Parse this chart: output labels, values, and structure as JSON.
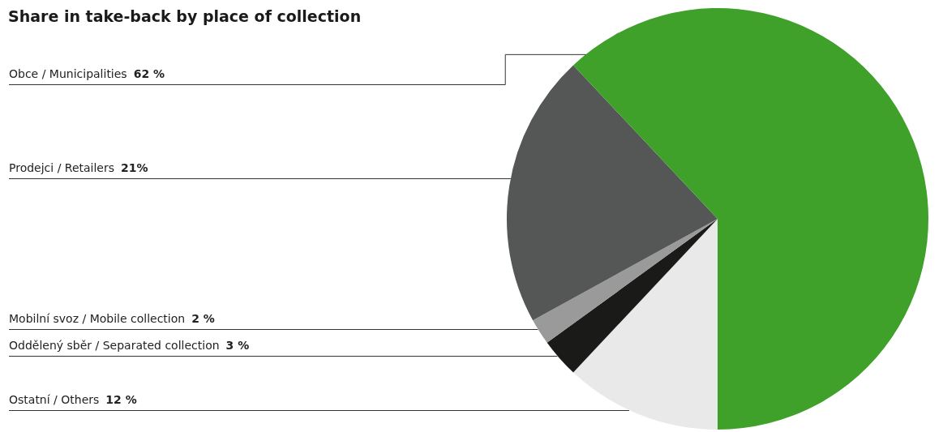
{
  "chart_data": {
    "type": "pie",
    "title": "Share in take-back by place of collection",
    "categories": [
      "Obce / Municipalities",
      "Prodejci / Retailers",
      "Mobilní svoz / Mobile collection",
      "Oddělený sběr / Separated collection",
      "Ostatní / Others"
    ],
    "values": [
      62,
      21,
      2,
      3,
      12
    ],
    "value_labels": [
      "62 %",
      "21%",
      "2 %",
      "3 %",
      "12 %"
    ],
    "colors": [
      "#3fa02a",
      "#555656",
      "#9a9a9a",
      "#1a1a18",
      "#e8e9e8"
    ],
    "legend": false
  }
}
